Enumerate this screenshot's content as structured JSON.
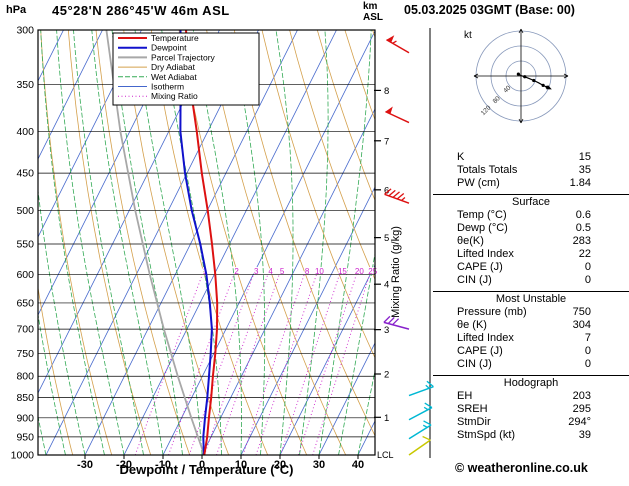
{
  "header": {
    "pressure_unit": "hPa",
    "station_title": "45°28'N 286°45'W 46m ASL",
    "altitude_unit_top": "km",
    "altitude_unit_bottom": "ASL",
    "datetime": "05.03.2025 03GMT (Base: 00)"
  },
  "axes": {
    "pressure_ticks": [
      300,
      350,
      400,
      450,
      500,
      550,
      600,
      650,
      700,
      750,
      800,
      850,
      900,
      950,
      1000
    ],
    "temp_ticks": [
      -30,
      -20,
      -10,
      0,
      10,
      20,
      30,
      40
    ],
    "x_axis_label": "Dewpoint / Temperature (°C)",
    "km_ticks": [
      1,
      2,
      3,
      4,
      5,
      6,
      7,
      8
    ],
    "mixing_axis_label": "Mixing Ratio (g/kg)",
    "lcl_label": "LCL"
  },
  "legend": [
    {
      "label": "Temperature",
      "color": "#dd1111",
      "width": 2,
      "dash": ""
    },
    {
      "label": "Dewpoint",
      "color": "#1111cc",
      "width": 2,
      "dash": ""
    },
    {
      "label": "Parcel Trajectory",
      "color": "#a8a8a8",
      "width": 2,
      "dash": ""
    },
    {
      "label": "Dry Adiabat",
      "color": "#d4a04c",
      "width": 1,
      "dash": ""
    },
    {
      "label": "Wet Adiabat",
      "color": "#33aa55",
      "width": 1,
      "dash": "5 2"
    },
    {
      "label": "Isotherm",
      "color": "#4466cc",
      "width": 1,
      "dash": ""
    },
    {
      "label": "Mixing Ratio",
      "color": "#cc22cc",
      "width": 1,
      "dash": "1 2.5"
    }
  ],
  "chart_data": {
    "type": "skewt_log_p",
    "pressure_range_hpa": [
      300,
      1000
    ],
    "temp_axis_range_c": [
      -40,
      40
    ],
    "isotherms_c": {
      "min": -100,
      "max": 40,
      "step": 10
    },
    "dry_adiabats_theta_k": {
      "min": 240,
      "max": 370,
      "step": 10
    },
    "wet_adiabats_start_c": {
      "min": -40,
      "max": 40,
      "step": 5
    },
    "mixing_ratio_lines_g_kg": [
      1,
      2,
      3,
      4,
      5,
      8,
      10,
      15,
      20,
      25
    ],
    "temperature_profile_p_c": [
      [
        1000,
        0.6
      ],
      [
        950,
        -1.0
      ],
      [
        900,
        -3.0
      ],
      [
        850,
        -5.0
      ],
      [
        800,
        -7.3
      ],
      [
        750,
        -9.6
      ],
      [
        700,
        -12.3
      ],
      [
        650,
        -15.6
      ],
      [
        600,
        -19.7
      ],
      [
        550,
        -24.5
      ],
      [
        500,
        -29.9
      ],
      [
        450,
        -36.2
      ],
      [
        400,
        -42.8
      ],
      [
        350,
        -50.6
      ],
      [
        300,
        -58.6
      ]
    ],
    "dewpoint_profile_p_c": [
      [
        1000,
        0.5
      ],
      [
        950,
        -2.0
      ],
      [
        900,
        -4.0
      ],
      [
        850,
        -6.0
      ],
      [
        800,
        -8.3
      ],
      [
        750,
        -10.8
      ],
      [
        700,
        -13.6
      ],
      [
        650,
        -17.5
      ],
      [
        600,
        -22.0
      ],
      [
        550,
        -27.5
      ],
      [
        500,
        -34.0
      ],
      [
        450,
        -40.5
      ],
      [
        400,
        -47.0
      ],
      [
        350,
        -53.0
      ],
      [
        300,
        -60.0
      ]
    ],
    "parcel_profile_p_c": [
      [
        1000,
        0.6
      ],
      [
        900,
        -7.5
      ],
      [
        800,
        -16.3
      ],
      [
        700,
        -25.9
      ],
      [
        600,
        -36.5
      ],
      [
        500,
        -48.5
      ],
      [
        400,
        -62.4
      ],
      [
        300,
        -79.0
      ]
    ],
    "wind_barbs": [
      {
        "pressure": 320,
        "speed_kt": 55,
        "dir_deg": 300,
        "color": "#dd1111"
      },
      {
        "pressure": 390,
        "speed_kt": 50,
        "dir_deg": 295,
        "color": "#dd1111"
      },
      {
        "pressure": 490,
        "speed_kt": 45,
        "dir_deg": 290,
        "color": "#dd1111"
      },
      {
        "pressure": 700,
        "speed_kt": 30,
        "dir_deg": 285,
        "color": "#8822cc"
      },
      {
        "pressure": 845,
        "speed_kt": 15,
        "dir_deg": 70,
        "color": "#00b8d4"
      },
      {
        "pressure": 905,
        "speed_kt": 15,
        "dir_deg": 62,
        "color": "#00b8d4"
      },
      {
        "pressure": 955,
        "speed_kt": 15,
        "dir_deg": 58,
        "color": "#00b8d4"
      },
      {
        "pressure": 1000,
        "speed_kt": 10,
        "dir_deg": 55,
        "color": "#c8c800"
      }
    ]
  },
  "hodograph": {
    "unit": "kt",
    "rings_kt": [
      40,
      80,
      120
    ],
    "trace_uv_kt": [
      [
        -7,
        -5
      ],
      [
        0,
        -1
      ],
      [
        10,
        2
      ],
      [
        22,
        7
      ],
      [
        34,
        12
      ],
      [
        47,
        18
      ],
      [
        59,
        25
      ],
      [
        70,
        30
      ]
    ]
  },
  "stats": {
    "rows": [
      {
        "label": "K",
        "value": "15"
      },
      {
        "label": "Totals Totals",
        "value": "35"
      },
      {
        "label": "PW (cm)",
        "value": "1.84"
      }
    ],
    "sections": [
      {
        "title": "Surface",
        "rows": [
          [
            "Temp (°C)",
            "0.6"
          ],
          [
            "Dewp (°C)",
            "0.5"
          ],
          [
            "θe(K)",
            "283"
          ],
          [
            "Lifted Index",
            "22"
          ],
          [
            "CAPE (J)",
            "0"
          ],
          [
            "CIN (J)",
            "0"
          ]
        ]
      },
      {
        "title": "Most Unstable",
        "rows": [
          [
            "Pressure (mb)",
            "750"
          ],
          [
            "θe (K)",
            "304"
          ],
          [
            "Lifted Index",
            "7"
          ],
          [
            "CAPE (J)",
            "0"
          ],
          [
            "CIN (J)",
            "0"
          ]
        ]
      },
      {
        "title": "Hodograph",
        "rows": [
          [
            "EH",
            "203"
          ],
          [
            "SREH",
            "295"
          ],
          [
            "StmDir",
            "294°"
          ],
          [
            "StmSpd (kt)",
            "39"
          ]
        ]
      }
    ]
  },
  "footer": {
    "copyright": "© weatheronline.co.uk"
  }
}
